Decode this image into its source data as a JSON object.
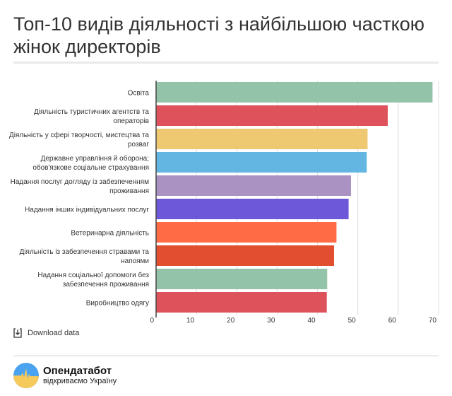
{
  "header": {
    "title": "Топ-10 видів діяльності з найбільшою часткою жінок директорів"
  },
  "chart_data": {
    "type": "bar",
    "orientation": "horizontal",
    "title": "Топ-10 видів діяльності з найбільшою часткою жінок директорів",
    "categories": [
      [
        "Освіта"
      ],
      [
        "Діяльність туристичних агентств та",
        "операторів"
      ],
      [
        "Діяльність у сфері творчості, мистецтва та",
        "розваг"
      ],
      [
        "Державне управління й оборона;",
        "обов'язкове соціальне страхування"
      ],
      [
        "Надання послуг догляду із забезпеченням",
        "проживання"
      ],
      [
        "Надання інших індивідуальних послуг"
      ],
      [
        "Ветеринарна діяльність"
      ],
      [
        "Діяльність із забезпечення стравами та",
        "напоями"
      ],
      [
        "Надання соціальної допомоги без",
        "забезпечення проживання"
      ],
      [
        "Виробництво одягу"
      ]
    ],
    "values": [
      68.5,
      57.4,
      52.4,
      52.2,
      48.3,
      47.7,
      44.7,
      44.1,
      42.4,
      42.3
    ],
    "colors": [
      "#93c3a9",
      "#dd525b",
      "#efc972",
      "#62b6e1",
      "#aa92c3",
      "#6c58d8",
      "#ff6b44",
      "#e24e30",
      "#93c3a9",
      "#dd525b"
    ],
    "xlim": [
      0,
      70
    ],
    "xticks": [
      "0",
      "10",
      "20",
      "30",
      "40",
      "50",
      "60",
      "70"
    ],
    "grid": true
  },
  "footer": {
    "download_label": "Download data",
    "brand": "Опендатабот",
    "tagline": "відкриваємо Україну"
  }
}
